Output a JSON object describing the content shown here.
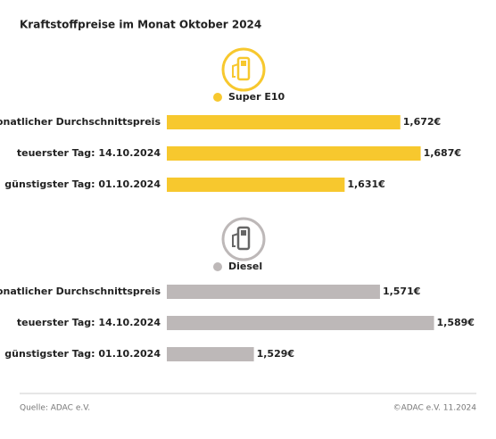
{
  "title": "Kraftstoffpreise im Monat Oktober 2024",
  "chart_data": [
    {
      "type": "bar",
      "orientation": "horizontal",
      "categories": [
        "Monatlicher Durchschnittspreis",
        "teuerster Tag: 14.10.2024",
        "günstigster Tag: 01.10.2024"
      ],
      "series": [
        {
          "name": "Super E10",
          "color": "#f7c82e",
          "values": [
            1.672,
            1.687,
            1.631
          ],
          "value_labels": [
            "1,672€",
            "1,687€",
            "1,631€"
          ]
        }
      ],
      "xlim": [
        1.5,
        1.73
      ]
    },
    {
      "type": "bar",
      "orientation": "horizontal",
      "categories": [
        "Monatlicher Durchschnittspreis",
        "teuerster Tag: 14.10.2024",
        "günstigster Tag: 01.10.2024"
      ],
      "series": [
        {
          "name": "Diesel",
          "color": "#bdb8b8",
          "values": [
            1.571,
            1.589,
            1.529
          ],
          "value_labels": [
            "1,571€",
            "1,589€",
            "1,529€"
          ]
        }
      ],
      "xlim": [
        1.5,
        1.604
      ]
    }
  ],
  "footer": {
    "source": "Quelle: ADAC e.V.",
    "copyright": "©ADAC e.V. 11.2024"
  }
}
